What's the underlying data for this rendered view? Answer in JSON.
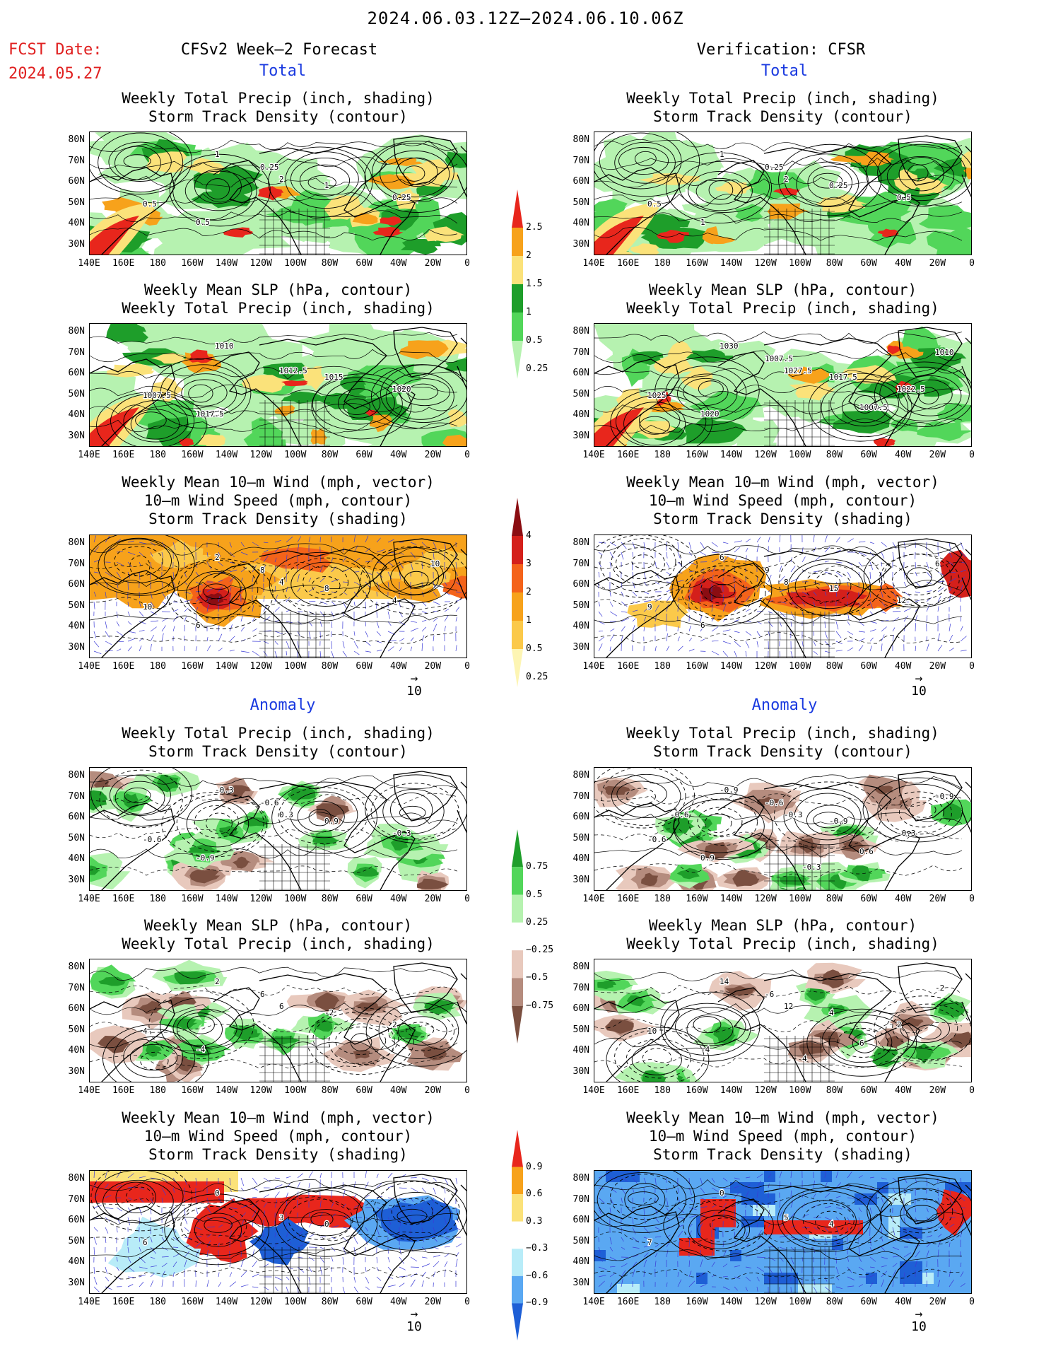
{
  "header": {
    "title": "2024.06.03.12Z—2024.06.10.06Z",
    "fcst_label": "FCST Date:",
    "fcst_date": "2024.05.27",
    "left_column": "CFSv2 Week—2 Forecast",
    "right_column": "Verification: CFSR"
  },
  "sections": {
    "total": "Total",
    "anomaly": "Anomaly"
  },
  "panel_titles": {
    "precip_storm": [
      "Weekly Total Precip (inch, shading)",
      "Storm Track Density (contour)"
    ],
    "slp_precip": [
      "Weekly Mean SLP (hPa, contour)",
      "Weekly Total Precip (inch, shading)"
    ],
    "wind_storm": [
      "Weekly Mean 10—m Wind (mph, vector)",
      "10—m Wind Speed (mph, contour)",
      "Storm Track Density (shading)"
    ]
  },
  "axes": {
    "lat_labels": [
      "80N",
      "70N",
      "60N",
      "50N",
      "40N",
      "30N"
    ],
    "lon_labels": [
      "140E",
      "160E",
      "180",
      "160W",
      "140W",
      "120W",
      "100W",
      "80W",
      "60W",
      "40W",
      "20W",
      "0"
    ]
  },
  "colorbars": {
    "precip_total": {
      "ticks": [
        "2.5",
        "2",
        "1.5",
        "1",
        "0.5",
        "0.25"
      ],
      "colors": [
        "#e8261c",
        "#f7a21b",
        "#fbe27a",
        "#1e9e2a",
        "#52d65a",
        "#b6f2b0"
      ]
    },
    "storm_total": {
      "ticks": [
        "4",
        "3",
        "2",
        "1",
        "0.5",
        "0.25"
      ],
      "colors": [
        "#8b0d12",
        "#d4201b",
        "#f4631a",
        "#f7a21b",
        "#fbc94a",
        "#fdf5b3"
      ]
    },
    "precip_anom": {
      "ticks": [
        "0.75",
        "0.5",
        "0.25",
        "−0.25",
        "−0.5",
        "−0.75"
      ],
      "colors": [
        "#1e9e2a",
        "#52d65a",
        "#b6f2b0",
        "#ffffff",
        "#e8c9bd",
        "#b58c7e",
        "#7a4f40"
      ]
    },
    "storm_anom": {
      "ticks": [
        "0.9",
        "0.6",
        "0.3",
        "−0.3",
        "−0.6",
        "−0.9"
      ],
      "colors": [
        "#e8261c",
        "#f7a21b",
        "#fbe27a",
        "#ffffff",
        "#b8ecf8",
        "#5aa8f2",
        "#1e5fd6"
      ]
    }
  },
  "wind_key": {
    "value": "10"
  },
  "contour_labels": {
    "fc_total_precip": [
      "1",
      "2",
      "0.5",
      "1",
      "0.25",
      "0.5",
      "0.25"
    ],
    "fc_total_slp": [
      "1010",
      "1012.5",
      "1007.5",
      "1015",
      "1020",
      "1017.5"
    ],
    "fc_total_wind": [
      "2",
      "4",
      "10",
      "8",
      "4",
      "6",
      "8",
      "10"
    ],
    "vf_total_precip": [
      "1",
      "2",
      "0.5",
      "0.25",
      "0.5",
      "1",
      "0.25"
    ],
    "vf_total_slp": [
      "1030",
      "1027.5",
      "1025",
      "1017.5",
      "1022.5",
      "1020",
      "1007.5",
      "1010",
      "1007.5"
    ],
    "vf_total_wind": [
      "6",
      "8",
      "9",
      "15",
      "12",
      "6",
      "9",
      "6"
    ],
    "fc_anom_precip": [
      "-0.3",
      "0.3",
      "-0.6",
      "0.9",
      "-0.3",
      "-0.9",
      "-0.6"
    ],
    "fc_anom_slp": [
      "2",
      "6",
      "4",
      "-2",
      "2",
      "-4",
      "6"
    ],
    "fc_anom_wind": [
      "0",
      "3",
      "6",
      "0"
    ],
    "vf_anom_precip": [
      "-0.9",
      "-0.3",
      "-0.6",
      "-0.9",
      "-0.3",
      "0.9",
      "-0.6",
      "-0.9",
      "0.6",
      "-0.3",
      "-0.6"
    ],
    "vf_anom_slp": [
      "14",
      "12",
      "10",
      "4",
      "2",
      "-4",
      "-6",
      "-2",
      "6",
      "4"
    ],
    "vf_anom_wind": [
      "0",
      "5",
      "7",
      "4"
    ]
  }
}
